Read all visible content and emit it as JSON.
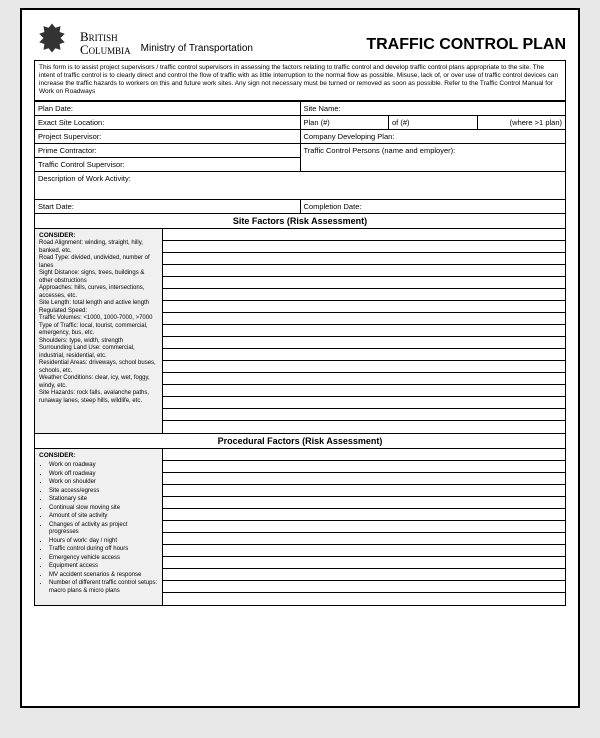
{
  "header": {
    "province_line1": "British",
    "province_line2": "Columbia",
    "ministry": "Ministry of Transportation",
    "title": "TRAFFIC CONTROL PLAN"
  },
  "intro": "This form is to assist project supervisors / traffic control supervisors in assessing the factors relating to traffic control and develop traffic control plans appropriate to the site. The intent of traffic control is to clearly direct and control the flow of traffic with as little interruption to the normal flow as possible. Misuse, lack of, or over use of traffic control devices can increase the traffic hazards to workers on this and future work sites. Any sign not necessary must be turned or removed as soon as possible. Refer to the Traffic Control Manual for Work on Roadways",
  "fields": {
    "plan_date": "Plan Date:",
    "site_name": "Site Name:",
    "exact_site_location": "Exact Site Location:",
    "plan_num": "Plan (#)",
    "of": "of (#)",
    "where": "(where >1 plan)",
    "project_supervisor": "Project Supervisor:",
    "company_developing": "Company Developing Plan:",
    "prime_contractor": "Prime Contractor:",
    "traffic_persons": "Traffic Control Persons (name and employer):",
    "tc_supervisor": "Traffic Control Supervisor:",
    "desc_work": "Description of Work Activity:",
    "start_date": "Start Date:",
    "completion_date": "Completion Date:"
  },
  "section1": {
    "heading": "Site Factors (Risk Assessment)",
    "consider_label": "CONSIDER:",
    "items_raw": "Road Alignment: winding, straight, hilly, banked, etc.\nRoad Type: divided, undivided, number of lanes\nSight Distance: signs, trees, buildings & other obstructions\nApproaches: hills, curves, intersections, accesses, etc.\nSite Length: total length and active length\nRegulated Speed:\nTraffic Volumes: <1000, 1000-7000, >7000\nType of Traffic: local, tourist, commercial, emergency, bus, etc.\nShoulders: type, width, strength\nSurrounding Land Use: commercial, industrial, residential, etc.\nResidential Areas: driveways, school buses, schools, etc.\nWeather Conditions: clear, icy, wet, foggy, windy, etc.\nSite Hazards: rock falls, avalanche paths, runaway lanes, steep hills, wildlife, etc."
  },
  "section2": {
    "heading": "Procedural Factors (Risk Assessment)",
    "consider_label": "CONSIDER:",
    "items": [
      "Work on roadway",
      "Work off roadway",
      "Work on shoulder",
      "Site access/egress",
      "Stationary site",
      "Continual slow moving site",
      "Amount of site activity",
      "Changes of activity as project progresses",
      "Hours of work: day / night",
      "Traffic control during off hours",
      "Emergency vehicle access",
      "Equipment access",
      "MV accident scenarios & response",
      "Number of different traffic control setups: macro plans & micro plans"
    ]
  },
  "colors": {
    "border": "#000000",
    "page_bg": "#ffffff",
    "outer_bg": "#e8e8e8",
    "consider_bg": "#f0f0f0"
  }
}
